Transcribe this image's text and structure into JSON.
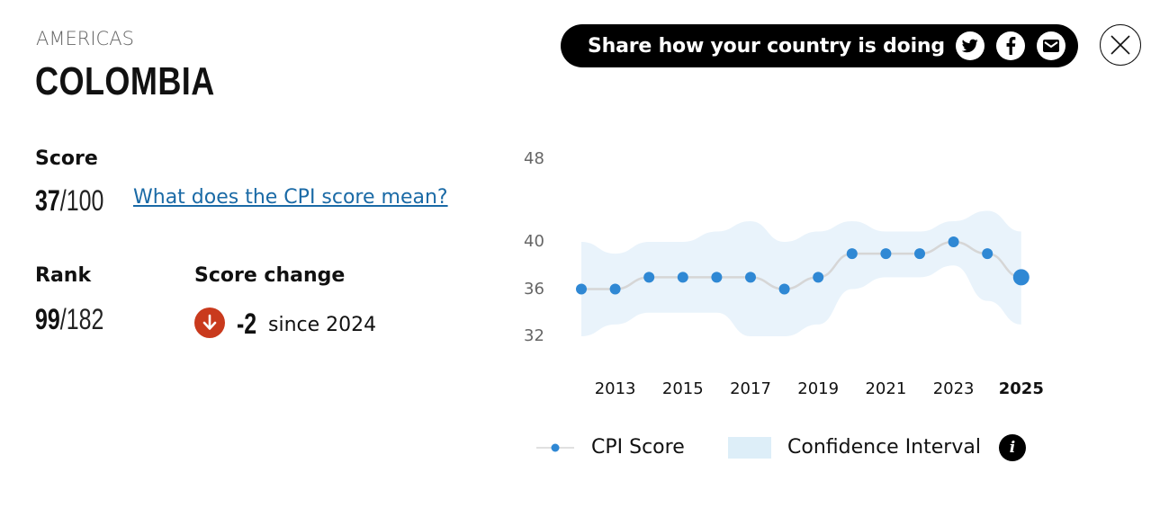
{
  "header": {
    "region": "AMERICAS",
    "country": "COLOMBIA"
  },
  "score": {
    "label": "Score",
    "value": "37",
    "out_of": "/100",
    "link_text": "What does the CPI score mean?"
  },
  "rank": {
    "label": "Rank",
    "value": "99",
    "out_of": "/182"
  },
  "score_change": {
    "label": "Score change",
    "value": "-2",
    "since": "since 2024",
    "direction": "down",
    "color": "#c93a1d"
  },
  "share": {
    "text": "Share how your country is doing",
    "icons": [
      "twitter-icon",
      "facebook-icon",
      "email-icon"
    ]
  },
  "close": {
    "icon": "close-icon"
  },
  "legend": {
    "score_label": "CPI Score",
    "ci_label": "Confidence Interval",
    "info_glyph": "i"
  },
  "colors": {
    "point": "#2f88d4",
    "line": "#d6d6d6",
    "band": "#e9f3fb",
    "link": "#1a6aa6"
  },
  "chart_data": {
    "type": "line",
    "title": "",
    "xlabel": "",
    "ylabel": "",
    "x": [
      2012,
      2013,
      2014,
      2015,
      2016,
      2017,
      2018,
      2019,
      2020,
      2021,
      2022,
      2023,
      2024,
      2025
    ],
    "x_tick_labels": [
      "2013",
      "2015",
      "2017",
      "2019",
      "2021",
      "2023",
      "2025"
    ],
    "highlight_x": "2025",
    "y_tick_labels": [
      "48",
      "40",
      "36",
      "32"
    ],
    "ylim": [
      32,
      48
    ],
    "grid": false,
    "legend_position": "bottom",
    "series": [
      {
        "name": "CPI Score",
        "values": [
          36,
          36,
          37,
          37,
          37,
          37,
          36,
          37,
          39,
          39,
          39,
          40,
          39,
          37
        ]
      },
      {
        "name": "Confidence Interval (upper)",
        "values": [
          40,
          39,
          40,
          40,
          41,
          42,
          40,
          41,
          42,
          41,
          41,
          42,
          43,
          41
        ]
      },
      {
        "name": "Confidence Interval (lower)",
        "values": [
          32,
          33,
          34,
          34,
          34,
          32,
          32,
          33,
          36,
          37,
          37,
          38,
          35,
          33
        ]
      }
    ]
  }
}
